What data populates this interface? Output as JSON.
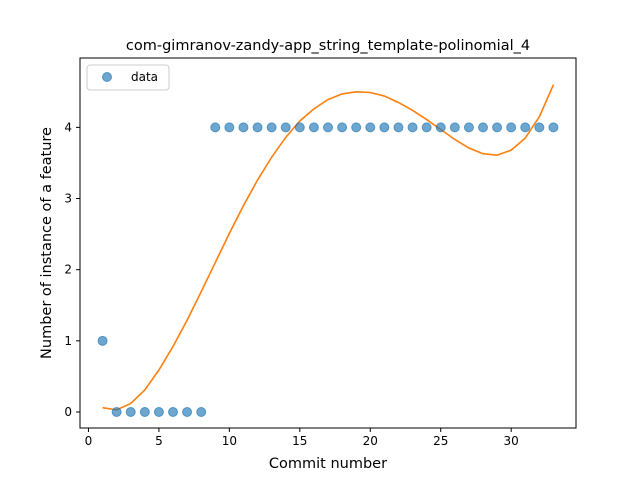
{
  "chart_data": {
    "type": "scatter",
    "title": "com-gimranov-zandy-app_string_template-polinomial_4",
    "xlabel": "Commit number",
    "ylabel": "Number of instance of a feature",
    "xlim": [
      -0.6,
      34.6
    ],
    "ylim": [
      -0.225,
      4.975
    ],
    "xticks": [
      0,
      5,
      10,
      15,
      20,
      25,
      30
    ],
    "yticks": [
      0,
      1,
      2,
      3,
      4
    ],
    "grid": false,
    "legend": {
      "position": "top-left",
      "entries": [
        "data"
      ]
    },
    "series": [
      {
        "name": "data",
        "kind": "scatter",
        "color": "#1f77b4",
        "x": [
          1,
          2,
          3,
          4,
          5,
          6,
          7,
          8,
          9,
          10,
          11,
          12,
          13,
          14,
          15,
          16,
          17,
          18,
          19,
          20,
          21,
          22,
          23,
          24,
          25,
          26,
          27,
          28,
          29,
          30,
          31,
          32,
          33
        ],
        "y": [
          1,
          0,
          0,
          0,
          0,
          0,
          0,
          0,
          4,
          4,
          4,
          4,
          4,
          4,
          4,
          4,
          4,
          4,
          4,
          4,
          4,
          4,
          4,
          4,
          4,
          4,
          4,
          4,
          4,
          4,
          4,
          4,
          4
        ]
      },
      {
        "kind": "line",
        "color": "#ff7f0e",
        "x": [
          1,
          2,
          3,
          4,
          5,
          6,
          7,
          8,
          9,
          10,
          11,
          12,
          13,
          14,
          15,
          16,
          17,
          18,
          19,
          20,
          21,
          22,
          23,
          24,
          25,
          26,
          27,
          28,
          29,
          30,
          31,
          32,
          33
        ],
        "y": [
          0.06,
          0.03,
          0.12,
          0.31,
          0.59,
          0.92,
          1.29,
          1.69,
          2.1,
          2.51,
          2.9,
          3.26,
          3.58,
          3.86,
          4.09,
          4.26,
          4.39,
          4.47,
          4.5,
          4.49,
          4.44,
          4.35,
          4.24,
          4.11,
          3.97,
          3.83,
          3.71,
          3.63,
          3.61,
          3.68,
          3.85,
          4.15,
          4.6
        ]
      }
    ]
  }
}
